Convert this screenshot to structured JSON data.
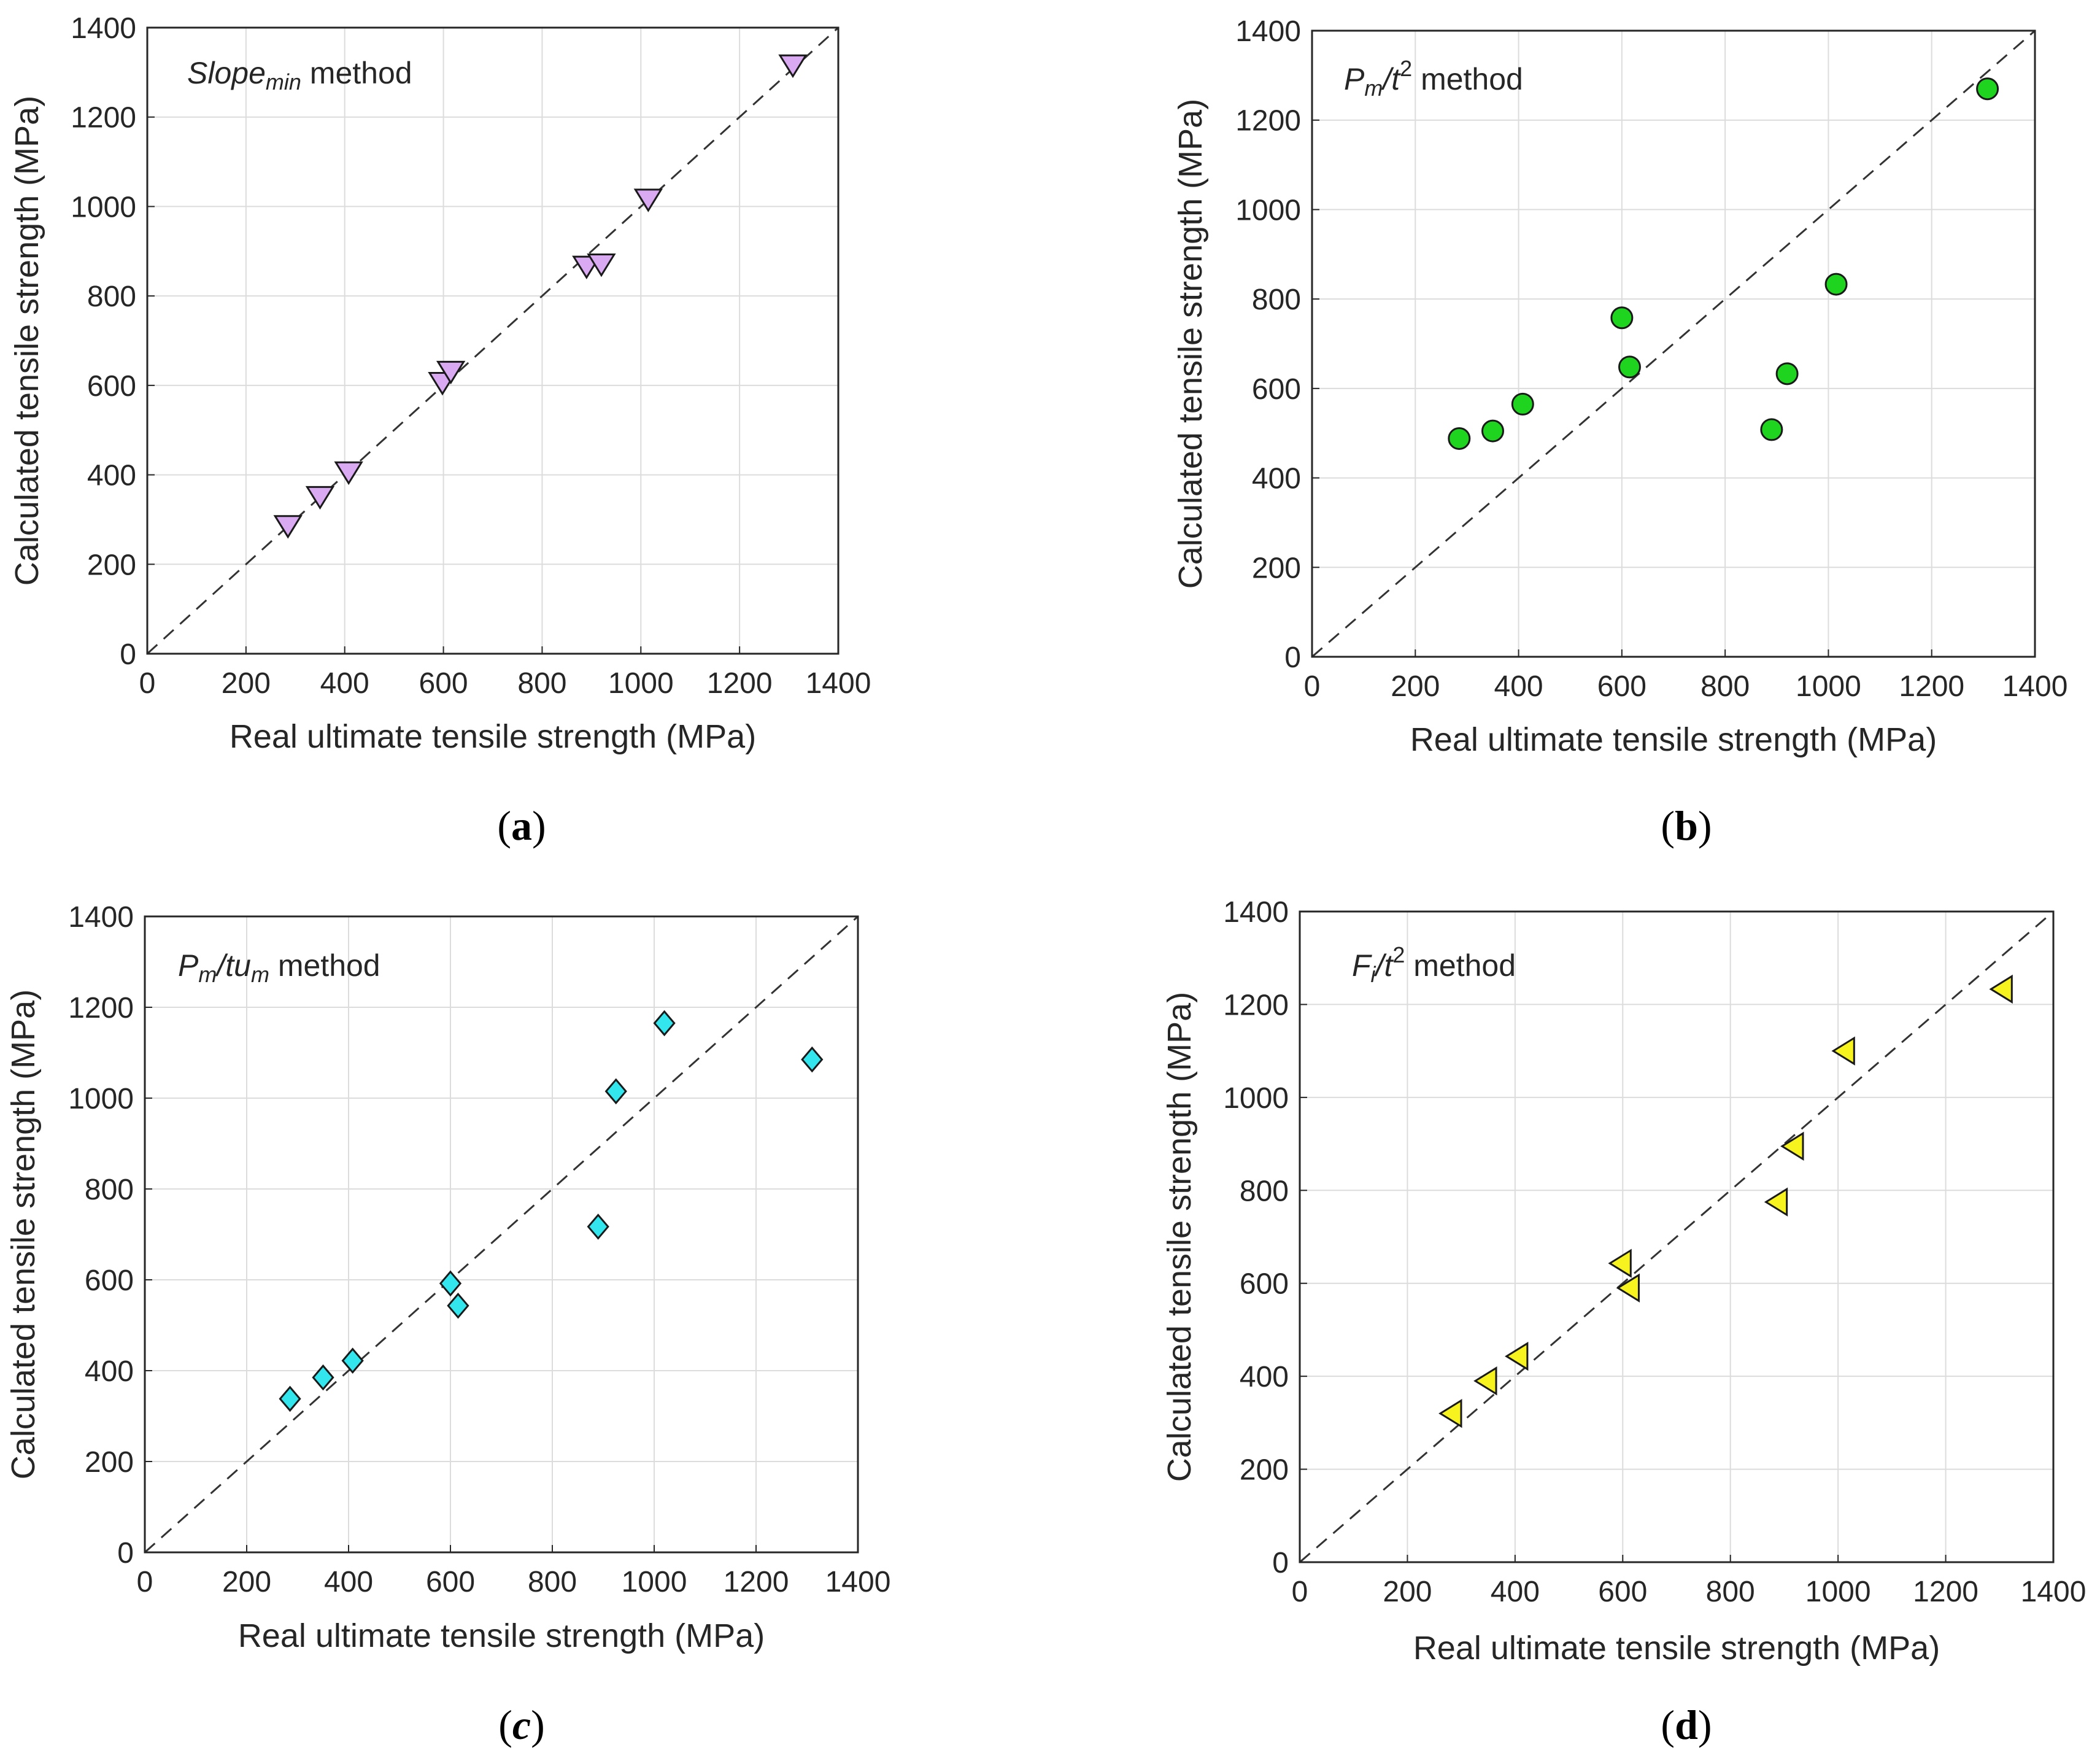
{
  "colors": {
    "slope_marker": "#d9a9f2",
    "pm_t2_marker": "#1fd41f",
    "pm_tum_marker": "#33e6ee",
    "fi_t2_marker": "#f7f31e",
    "marker_edge": "#1a1a1a",
    "grid": "#dcdcdc",
    "diagonal": "#333333"
  },
  "chart_data": [
    {
      "type": "scatter",
      "panel": "a",
      "caption": {
        "open": "(",
        "letter": "a",
        "close": ")"
      },
      "annotation": {
        "main": "Slope",
        "sub": "min",
        "rest": " method"
      },
      "xlabel": "Real ultimate tensile strength (MPa)",
      "ylabel": "Calculated tensile strength (MPa)",
      "xlim": [
        0,
        1400
      ],
      "ylim": [
        0,
        1400
      ],
      "xticks": [
        "0",
        "200",
        "400",
        "600",
        "800",
        "1000",
        "1200",
        "1400"
      ],
      "yticks": [
        "0",
        "200",
        "400",
        "600",
        "800",
        "1000",
        "1200",
        "1400"
      ],
      "grid": true,
      "reference_line": "y = x, dashed",
      "marker": "triangle-down",
      "points": {
        "x": [
          285,
          350,
          408,
          598,
          615,
          890,
          920,
          1015,
          1308
        ],
        "y": [
          290,
          355,
          410,
          610,
          635,
          870,
          875,
          1020,
          1320
        ]
      }
    },
    {
      "type": "scatter",
      "panel": "b",
      "caption": {
        "open": "(",
        "letter": "b",
        "close": ")"
      },
      "annotation": {
        "main": "P",
        "sub": "m",
        "mid": "/t",
        "sup": "2",
        "rest": " method"
      },
      "xlabel": "Real ultimate tensile strength (MPa)",
      "ylabel": "Calculated tensile strength (MPa)",
      "xlim": [
        0,
        1400
      ],
      "ylim": [
        0,
        1400
      ],
      "xticks": [
        "0",
        "200",
        "400",
        "600",
        "800",
        "1000",
        "1200",
        "1400"
      ],
      "yticks": [
        "0",
        "200",
        "400",
        "600",
        "800",
        "1000",
        "1200",
        "1400"
      ],
      "grid": true,
      "reference_line": "y = x, dashed",
      "marker": "circle",
      "points": {
        "x": [
          285,
          350,
          408,
          600,
          615,
          890,
          920,
          1015,
          1308
        ],
        "y": [
          488,
          505,
          565,
          758,
          648,
          508,
          633,
          833,
          1270
        ]
      }
    },
    {
      "type": "scatter",
      "panel": "c",
      "caption": {
        "open": "(",
        "letter": "c",
        "close": ")"
      },
      "annotation": {
        "main": "P",
        "sub": "m",
        "mid": "/tu",
        "sub2": "m",
        "rest": " method"
      },
      "xlabel": "Real ultimate tensile strength (MPa)",
      "ylabel": "Calculated tensile strength (MPa)",
      "xlim": [
        0,
        1400
      ],
      "ylim": [
        0,
        1400
      ],
      "xticks": [
        "0",
        "200",
        "400",
        "600",
        "800",
        "1000",
        "1200",
        "1400"
      ],
      "yticks": [
        "0",
        "200",
        "400",
        "600",
        "800",
        "1000",
        "1200",
        "1400"
      ],
      "grid": true,
      "reference_line": "y = x, dashed",
      "marker": "diamond",
      "points": {
        "x": [
          285,
          350,
          408,
          600,
          615,
          890,
          925,
          1020,
          1310
        ],
        "y": [
          338,
          385,
          422,
          592,
          543,
          717,
          1015,
          1165,
          1085
        ]
      }
    },
    {
      "type": "scatter",
      "panel": "d",
      "caption": {
        "open": "(",
        "letter": "d",
        "close": ")"
      },
      "annotation": {
        "main": "F",
        "sub": "i",
        "mid": "/t",
        "sup": "2",
        "rest": " method"
      },
      "xlabel": "Real ultimate tensile strength (MPa)",
      "ylabel": "Calculated tensile strength (MPa)",
      "xlim": [
        0,
        1400
      ],
      "ylim": [
        0,
        1400
      ],
      "xticks": [
        "0",
        "200",
        "400",
        "600",
        "800",
        "1000",
        "1200",
        "1400"
      ],
      "yticks": [
        "0",
        "200",
        "400",
        "600",
        "800",
        "1000",
        "1200",
        "1400"
      ],
      "grid": true,
      "reference_line": "y = x, dashed",
      "marker": "triangle-left",
      "points": {
        "x": [
          285,
          350,
          408,
          600,
          615,
          890,
          920,
          1015,
          1308
        ],
        "y": [
          320,
          390,
          443,
          643,
          590,
          775,
          895,
          1100,
          1233
        ]
      }
    }
  ]
}
